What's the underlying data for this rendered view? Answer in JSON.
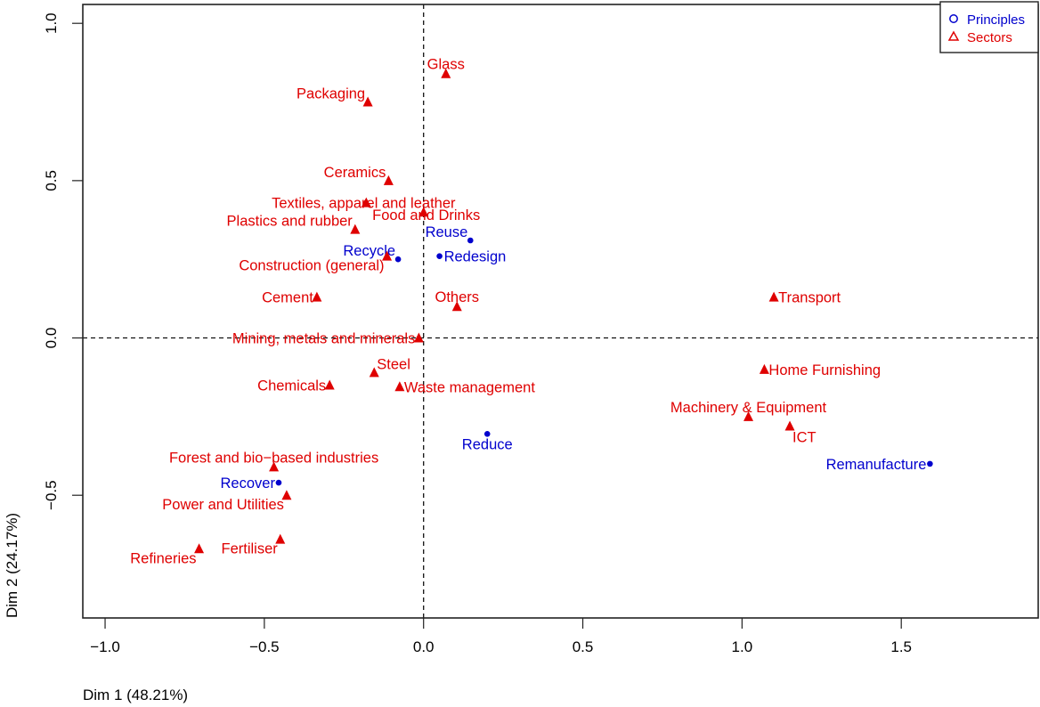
{
  "chart_data": {
    "type": "scatter",
    "title": "",
    "xlabel": "Dim 1 (48.21%)",
    "ylabel": "Dim 2 (24.17%)",
    "xlim": [
      -1.07,
      1.93
    ],
    "ylim": [
      -0.89,
      1.06
    ],
    "xticks": [
      -1.0,
      -0.5,
      0.0,
      0.5,
      1.0,
      1.5
    ],
    "xtick_labels": [
      "−1.0",
      "−0.5",
      "0.0",
      "0.5",
      "1.0",
      "1.5"
    ],
    "yticks": [
      -0.5,
      0.0,
      0.5,
      1.0
    ],
    "ytick_labels": [
      "−0.5",
      "0.0",
      "0.5",
      "1.0"
    ],
    "grid": false,
    "reference_lines": {
      "x": 0,
      "y": 0,
      "style": "dashed"
    },
    "legend": {
      "position": "top-right",
      "entries": [
        {
          "label": "Principles",
          "marker": "circle",
          "color": "#0000CD"
        },
        {
          "label": "Sectors",
          "marker": "triangle",
          "color": "#DF0000"
        }
      ]
    },
    "series": [
      {
        "name": "Principles",
        "marker": "circle",
        "color": "#0000CD",
        "points": [
          {
            "label": "Reuse",
            "x": 0.147,
            "y": 0.31,
            "pos": "top-left"
          },
          {
            "label": "Recycle",
            "x": -0.08,
            "y": 0.25,
            "pos": "top-left"
          },
          {
            "label": "Redesign",
            "x": 0.05,
            "y": 0.26,
            "pos": "right"
          },
          {
            "label": "Reduce",
            "x": 0.2,
            "y": -0.305,
            "pos": "below"
          },
          {
            "label": "Recover",
            "x": -0.455,
            "y": -0.46,
            "pos": "left"
          },
          {
            "label": "Remanufacture",
            "x": 1.59,
            "y": -0.4,
            "pos": "left"
          }
        ]
      },
      {
        "name": "Sectors",
        "marker": "triangle",
        "color": "#DF0000",
        "points": [
          {
            "label": "Glass",
            "x": 0.07,
            "y": 0.84,
            "pos": "top"
          },
          {
            "label": "Packaging",
            "x": -0.175,
            "y": 0.75,
            "pos": "top-left"
          },
          {
            "label": "Ceramics",
            "x": -0.11,
            "y": 0.5,
            "pos": "top-left"
          },
          {
            "label": "Textiles, apparel and leather",
            "x": -0.18,
            "y": 0.43,
            "pos": "center-tl"
          },
          {
            "label": "Food and Drinks",
            "x": 0.0,
            "y": 0.4,
            "pos": "center-br"
          },
          {
            "label": "Plastics and rubber",
            "x": -0.215,
            "y": 0.345,
            "pos": "top-left"
          },
          {
            "label": "Construction (general)",
            "x": -0.115,
            "y": 0.26,
            "pos": "bottom-left"
          },
          {
            "label": "Cement",
            "x": -0.335,
            "y": 0.13,
            "pos": "left"
          },
          {
            "label": "Others",
            "x": 0.105,
            "y": 0.1,
            "pos": "top"
          },
          {
            "label": "Transport",
            "x": 1.1,
            "y": 0.13,
            "pos": "right"
          },
          {
            "label": "Mining, metals and minerals",
            "x": -0.015,
            "y": 0.0,
            "pos": "left"
          },
          {
            "label": "Steel",
            "x": -0.155,
            "y": -0.11,
            "pos": "top-right"
          },
          {
            "label": "Chemicals",
            "x": -0.295,
            "y": -0.15,
            "pos": "left"
          },
          {
            "label": "Waste management",
            "x": -0.075,
            "y": -0.155,
            "pos": "right"
          },
          {
            "label": "Home Furnishing",
            "x": 1.07,
            "y": -0.1,
            "pos": "right"
          },
          {
            "label": "Machinery & Equipment",
            "x": 1.02,
            "y": -0.25,
            "pos": "top"
          },
          {
            "label": "ICT",
            "x": 1.15,
            "y": -0.28,
            "pos": "bottom-right"
          },
          {
            "label": "Forest and bio−based industries",
            "x": -0.47,
            "y": -0.41,
            "pos": "top"
          },
          {
            "label": "Power and Utilities",
            "x": -0.43,
            "y": -0.5,
            "pos": "bottom-left"
          },
          {
            "label": "Fertiliser",
            "x": -0.45,
            "y": -0.64,
            "pos": "bottom-left"
          },
          {
            "label": "Refineries",
            "x": -0.705,
            "y": -0.67,
            "pos": "bottom-left"
          }
        ]
      }
    ]
  }
}
